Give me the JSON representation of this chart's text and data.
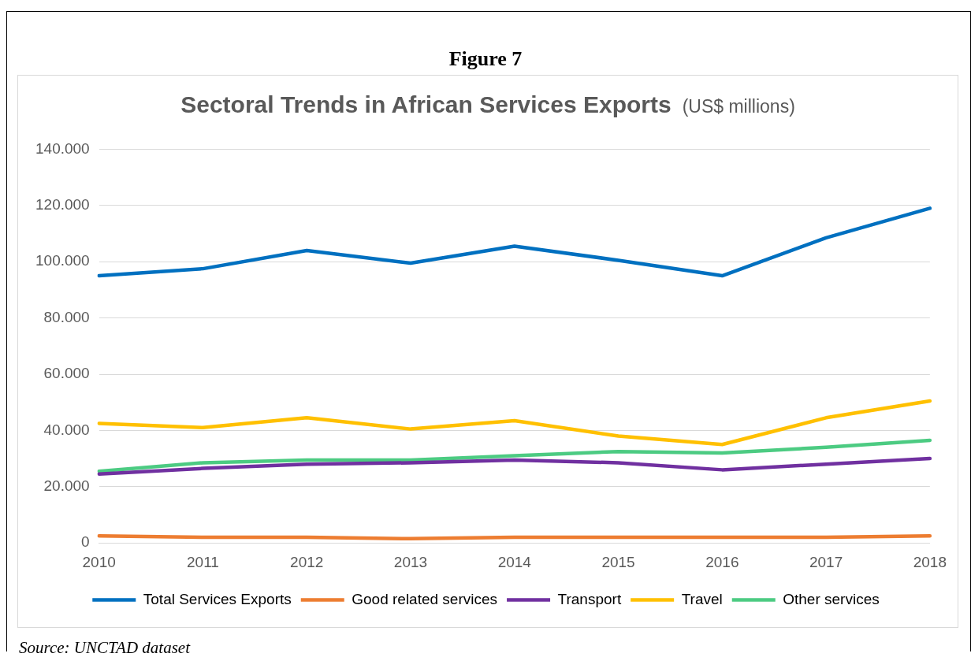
{
  "chart_data": {
    "type": "line",
    "title": "Sectoral Trends in African Services Exports",
    "subtitle": "(US$ millions)",
    "annotations": [
      "Figure 7",
      "Source: UNCTAD dataset"
    ],
    "categories": [
      "2010",
      "2011",
      "2012",
      "2013",
      "2014",
      "2015",
      "2016",
      "2017",
      "2018"
    ],
    "series": [
      {
        "name": "Total Services Exports",
        "color": "#0070c0",
        "values": [
          95000,
          97500,
          104000,
          99500,
          105500,
          100500,
          95000,
          108500,
          119000
        ]
      },
      {
        "name": "Good related services",
        "color": "#ed7d31",
        "values": [
          2500,
          2000,
          2000,
          1500,
          2000,
          2000,
          2000,
          2000,
          2500
        ]
      },
      {
        "name": "Transport",
        "color": "#7030a0",
        "values": [
          24500,
          26500,
          28000,
          28500,
          29500,
          28500,
          26000,
          28000,
          30000
        ]
      },
      {
        "name": "Travel",
        "color": "#ffc000",
        "values": [
          42500,
          41000,
          44500,
          40500,
          43500,
          38000,
          35000,
          44500,
          50500
        ]
      },
      {
        "name": "Other services",
        "color": "#4ccb82",
        "values": [
          25500,
          28500,
          29500,
          29500,
          31000,
          32500,
          32000,
          34000,
          36500
        ]
      }
    ],
    "ylim": [
      0,
      140000
    ],
    "yticks": [
      0,
      {
        "value": 20000,
        "label": "20.000"
      },
      {
        "value": 40000,
        "label": "40.000"
      },
      {
        "value": 60000,
        "label": "60.000"
      },
      {
        "value": 80000,
        "label": "80.000"
      },
      {
        "value": 100000,
        "label": "100.000"
      },
      {
        "value": 120000,
        "label": "120.000"
      },
      {
        "value": 140000,
        "label": "140.000"
      }
    ],
    "grid": "y",
    "legend": "bottom",
    "marker": "none",
    "line_style": "solid"
  }
}
